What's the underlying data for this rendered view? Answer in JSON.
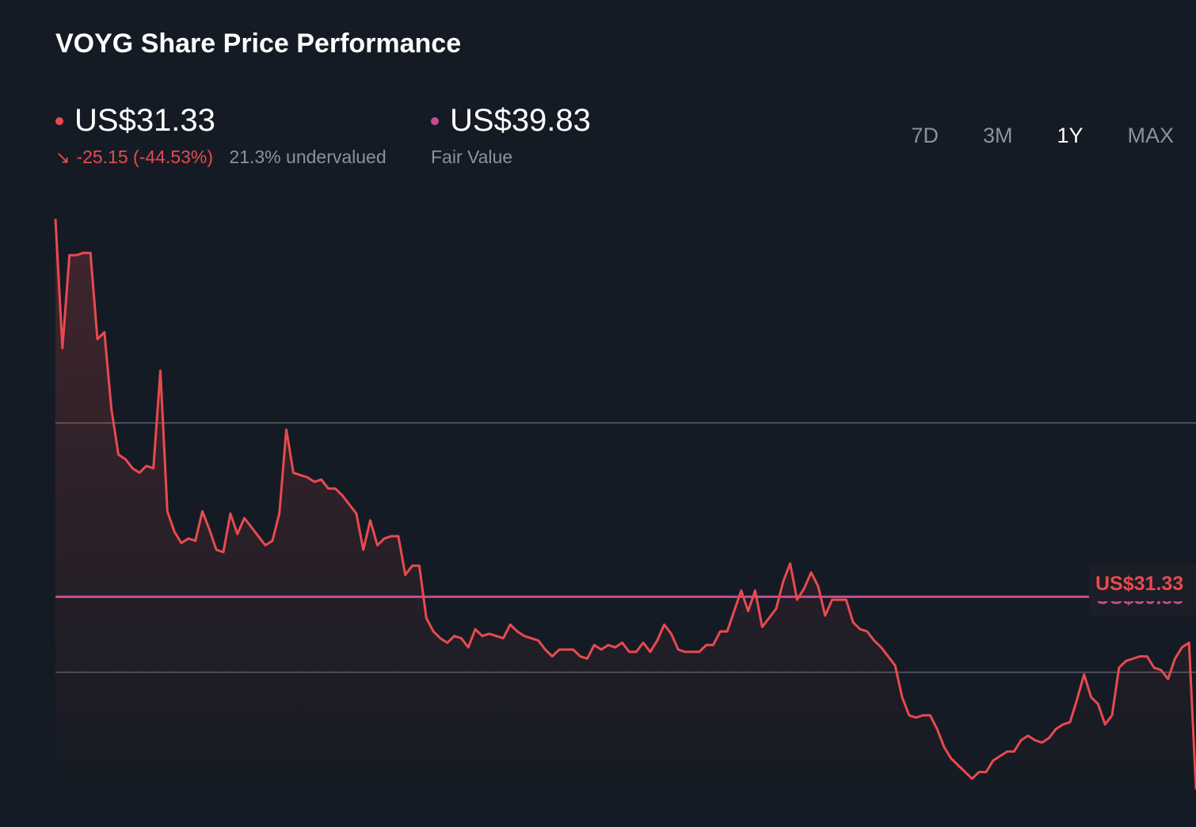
{
  "title": "VOYG Share Price Performance",
  "price": {
    "value": "US$31.33",
    "change": "-25.15 (-44.53%)",
    "valuation": "21.3% undervalued",
    "color": "#e84a4f"
  },
  "fair_value": {
    "value": "US$39.83",
    "label": "Fair Value",
    "color": "#c64c92"
  },
  "timeframes": [
    "7D",
    "3M",
    "1Y",
    "MAX"
  ],
  "active_timeframe": "1Y",
  "chart_data": {
    "type": "line",
    "title": "VOYG Share Price Performance",
    "series": [
      {
        "values": [
          56.5,
          50.8,
          54.9,
          54.9,
          55.0,
          55.0,
          51.2,
          51.5,
          48.1,
          46.1,
          45.9,
          45.5,
          45.3,
          45.6,
          45.5,
          49.8,
          43.6,
          42.7,
          42.2,
          42.4,
          42.3,
          43.6,
          42.8,
          41.9,
          41.8,
          43.5,
          42.6,
          43.3,
          42.9,
          42.5,
          42.1,
          42.3,
          43.5,
          47.2,
          45.3,
          45.2,
          45.1,
          44.9,
          45.0,
          44.6,
          44.6,
          44.3,
          43.9,
          43.5,
          41.9,
          43.2,
          42.1,
          42.4,
          42.5,
          42.5,
          40.8,
          41.2,
          41.2,
          38.9,
          38.3,
          38.0,
          37.8,
          38.1,
          38.0,
          37.6,
          38.4,
          38.1,
          38.2,
          38.1,
          38.0,
          38.6,
          38.3,
          38.1,
          38.0,
          37.9,
          37.5,
          37.2,
          37.5,
          37.5,
          37.5,
          37.2,
          37.1,
          37.7,
          37.5,
          37.7,
          37.6,
          37.8,
          37.4,
          37.4,
          37.8,
          37.4,
          37.9,
          38.6,
          38.2,
          37.5,
          37.4,
          37.4,
          37.4,
          37.7,
          37.7,
          38.3,
          38.3,
          39.2,
          40.1,
          39.2,
          40.1,
          38.5,
          38.9,
          39.3,
          40.5,
          41.3,
          39.7,
          40.2,
          40.9,
          40.3,
          39.0,
          39.7,
          39.7,
          39.7,
          38.7,
          38.4,
          38.3,
          37.9,
          37.6,
          37.2,
          36.8,
          35.4,
          34.6,
          34.5,
          34.6,
          34.6,
          34.0,
          33.2,
          32.7,
          32.4,
          32.1,
          31.8,
          32.1,
          32.1,
          32.6,
          32.8,
          33.0,
          33.0,
          33.5,
          33.7,
          33.5,
          33.4,
          33.6,
          34.0,
          34.2,
          34.3,
          35.3,
          36.4,
          35.4,
          35.1,
          34.2,
          34.6,
          36.7,
          37.0,
          37.1,
          37.2,
          37.2,
          36.7,
          36.6,
          36.2,
          37.1,
          37.6,
          37.8,
          31.33
        ]
      }
    ],
    "reference_lines": [
      {
        "label": "US$39.83",
        "value": 39.83
      }
    ],
    "end_label": "US$31.33",
    "ylim": [
      31.7,
      57.0
    ],
    "gridlines_y": [
      47.5,
      36.5
    ]
  }
}
